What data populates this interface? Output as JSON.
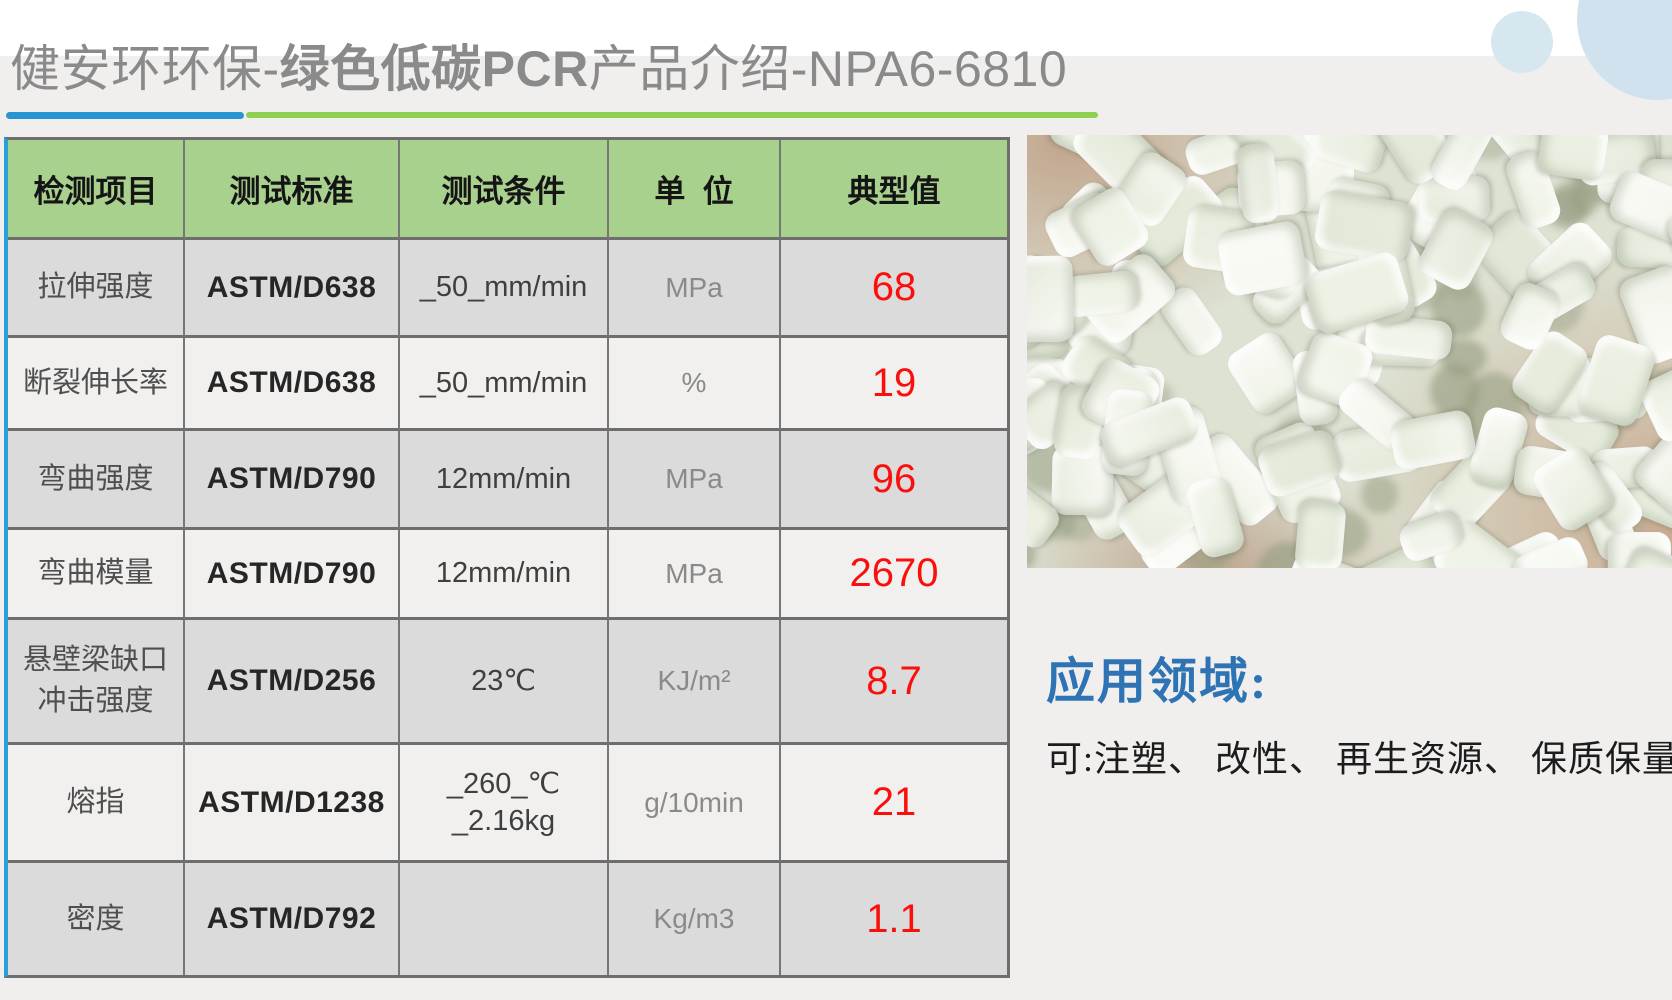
{
  "title": {
    "part1": "健安环环保-",
    "part2": "绿色低碳",
    "part3": "PCR",
    "part4": "产品介绍-NPA6-6810"
  },
  "table": {
    "headers": [
      "检测项目",
      "测试标准",
      "测试条件",
      "单  位",
      "典型值"
    ],
    "rows": [
      {
        "item": "拉伸强度",
        "standard": "ASTM/D638",
        "condition": "_50_mm/min",
        "unit": "MPa",
        "value": "68"
      },
      {
        "item": "断裂伸长率",
        "standard": "ASTM/D638",
        "condition": "_50_mm/min",
        "unit": "%",
        "value": "19"
      },
      {
        "item": "弯曲强度",
        "standard": "ASTM/D790",
        "condition": "12mm/min",
        "unit": "MPa",
        "value": "96"
      },
      {
        "item": "弯曲模量",
        "standard": "ASTM/D790",
        "condition": "12mm/min",
        "unit": "MPa",
        "value": "2670"
      },
      {
        "item": "悬壁梁缺口\n冲击强度",
        "standard": "ASTM/D256",
        "condition": "23℃",
        "unit": "KJ/m²",
        "value": "8.7"
      },
      {
        "item": "熔指",
        "standard": "ASTM/D1238",
        "condition": "_260_℃\n_2.16kg",
        "unit": "g/10min",
        "value": "21"
      },
      {
        "item": "密度",
        "standard": "ASTM/D792",
        "condition": "",
        "unit": "Kg/m3",
        "value": "1.1"
      }
    ]
  },
  "application": {
    "heading": "应用领域:",
    "body": "可:注塑、 改性、 再生资源、 保质保量"
  },
  "photo": {
    "description": "白色PCR再生塑料颗粒(手捧特写)"
  },
  "colors": {
    "header_green": "#a9d18e",
    "value_red": "#fa0f0c",
    "rule_blue": "#2795d2",
    "rule_green": "#8ed051",
    "heading_blue": "#2e74b5",
    "title_gray": "#8a8a8a",
    "row_dark": "#dbdbdb",
    "row_light": "#f1f0ef",
    "circle_blue": "#d6e7f0",
    "table_border_blue": "#2b9fd9"
  }
}
